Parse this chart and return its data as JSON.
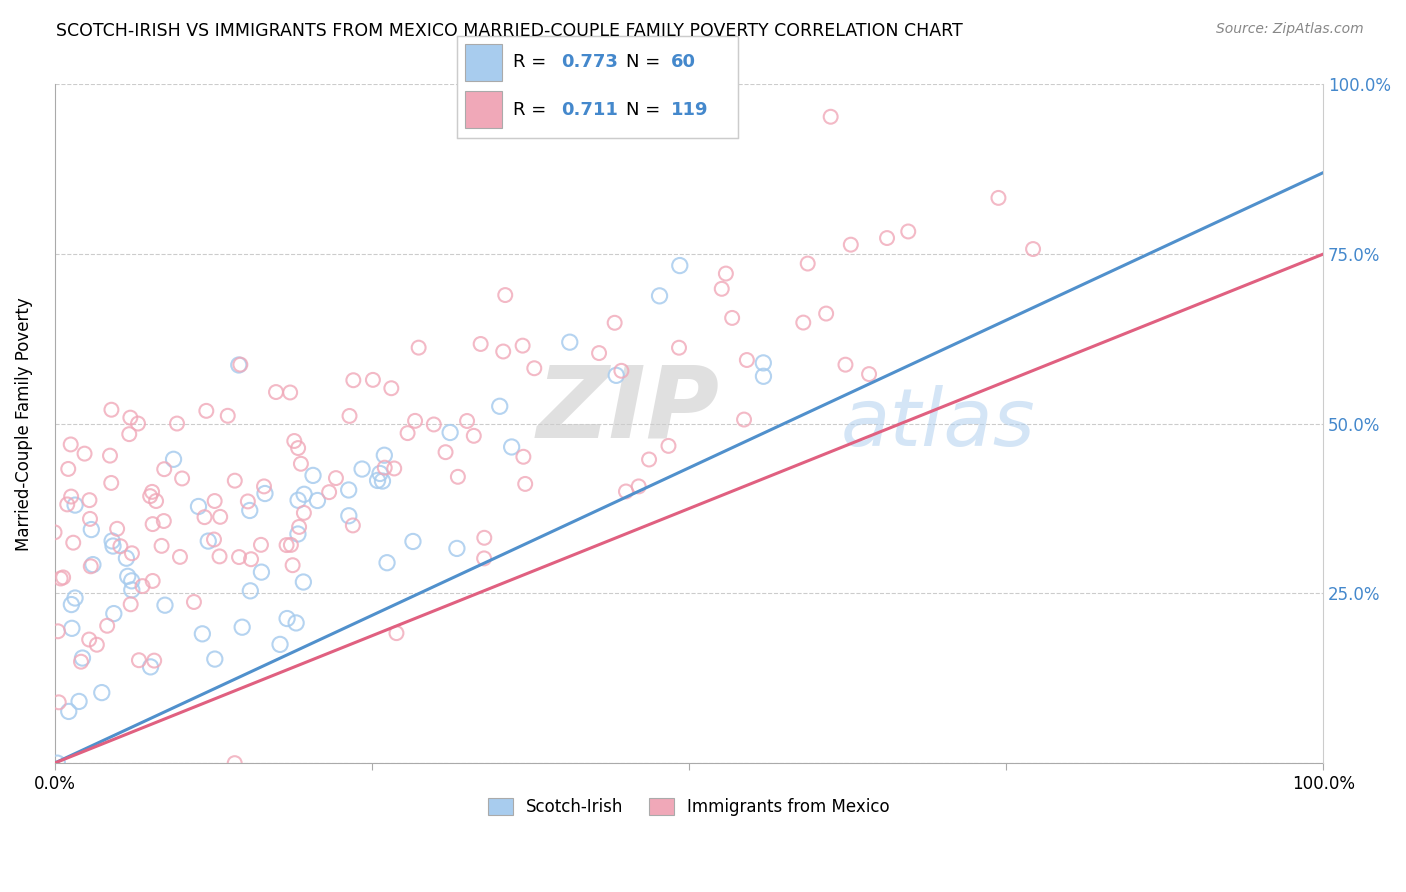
{
  "title": "SCOTCH-IRISH VS IMMIGRANTS FROM MEXICO MARRIED-COUPLE FAMILY POVERTY CORRELATION CHART",
  "source": "Source: ZipAtlas.com",
  "ylabel": "Married-Couple Family Poverty",
  "watermark_ZIP": "ZIP",
  "watermark_atlas": "atlas",
  "blue_color": "#A8CCEE",
  "pink_color": "#F0A8B8",
  "line_blue": "#5090CC",
  "line_pink": "#E06080",
  "text_blue": "#4488CC",
  "R_blue": 0.773,
  "N_blue": 60,
  "R_pink": 0.711,
  "N_pink": 119,
  "legend_label_blue": "Scotch-Irish",
  "legend_label_pink": "Immigrants from Mexico"
}
